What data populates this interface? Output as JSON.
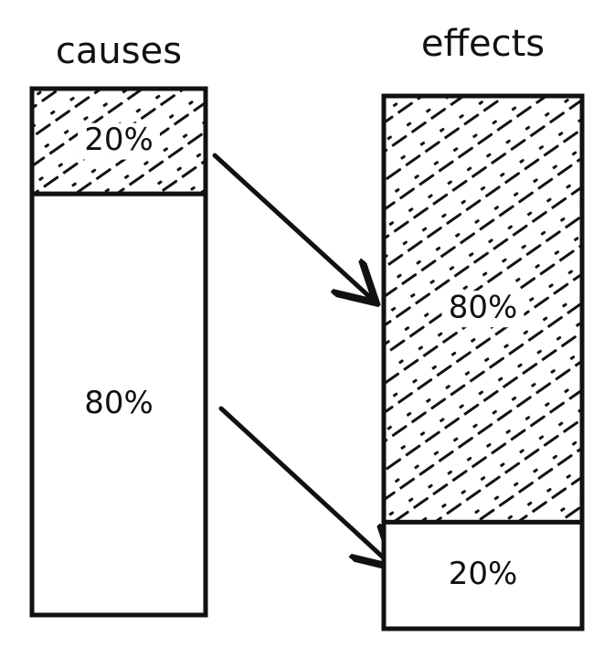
{
  "columns": [
    {
      "label": "causes",
      "segments": [
        {
          "value": 20,
          "label": "20%",
          "hatched": true
        },
        {
          "value": 80,
          "label": "80%",
          "hatched": false
        }
      ]
    },
    {
      "label": "effects",
      "segments": [
        {
          "value": 80,
          "label": "80%",
          "hatched": true
        },
        {
          "value": 20,
          "label": "20%",
          "hatched": false
        }
      ]
    }
  ]
}
